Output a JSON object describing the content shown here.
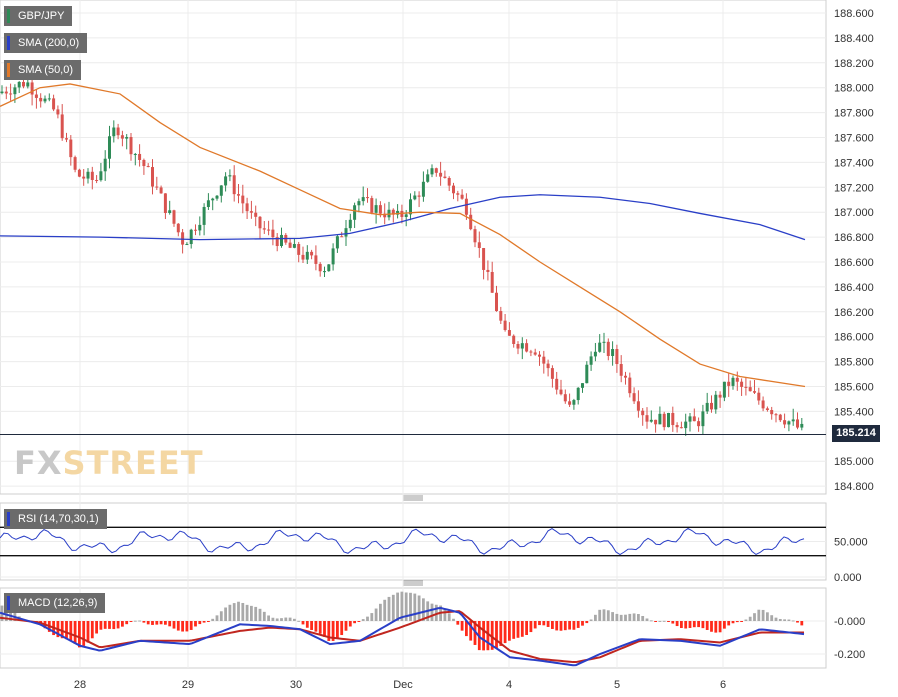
{
  "chart_data": [
    {
      "type": "candlestick",
      "instrument": "GBP/JPY",
      "indicators": [
        {
          "name": "SMA (200,0)",
          "color": "#2a3fc7"
        },
        {
          "name": "SMA (50,0)",
          "color": "#e0792a"
        }
      ],
      "y_ticks": [
        "188.600",
        "188.400",
        "188.200",
        "188.000",
        "187.800",
        "187.600",
        "187.400",
        "187.200",
        "187.000",
        "186.800",
        "186.600",
        "186.400",
        "186.200",
        "186.000",
        "185.800",
        "185.600",
        "185.400",
        "185.000",
        "184.800"
      ],
      "ylim": [
        184.7,
        188.7
      ],
      "last_price": "185.214",
      "last_price_value": 185.214,
      "x_ticks": [
        "28",
        "29",
        "30",
        "Dec",
        "4",
        "5",
        "6"
      ],
      "grid": true,
      "colors": {
        "up": "#2e8b57",
        "down": "#d9534f",
        "price_line": "#1f2a3d"
      }
    },
    {
      "type": "line",
      "name": "RSI (14,70,30,1)",
      "y_ticks": [
        "50.000",
        "0.000"
      ],
      "ylim": [
        0,
        100
      ],
      "bands": [
        70,
        30
      ],
      "color": "#2a3fc7"
    },
    {
      "type": "bar",
      "name": "MACD (12,26,9)",
      "y_ticks": [
        "-0.000",
        "-0.200"
      ],
      "ylim": [
        -0.26,
        0.16
      ],
      "colors": {
        "macd": "#2a3fc7",
        "signal": "#c0261f",
        "hist_pos": "#a9a9a9",
        "hist_neg": "#ff2a1a"
      }
    }
  ],
  "logo": {
    "part1": "FX",
    "part2": "STREET"
  }
}
